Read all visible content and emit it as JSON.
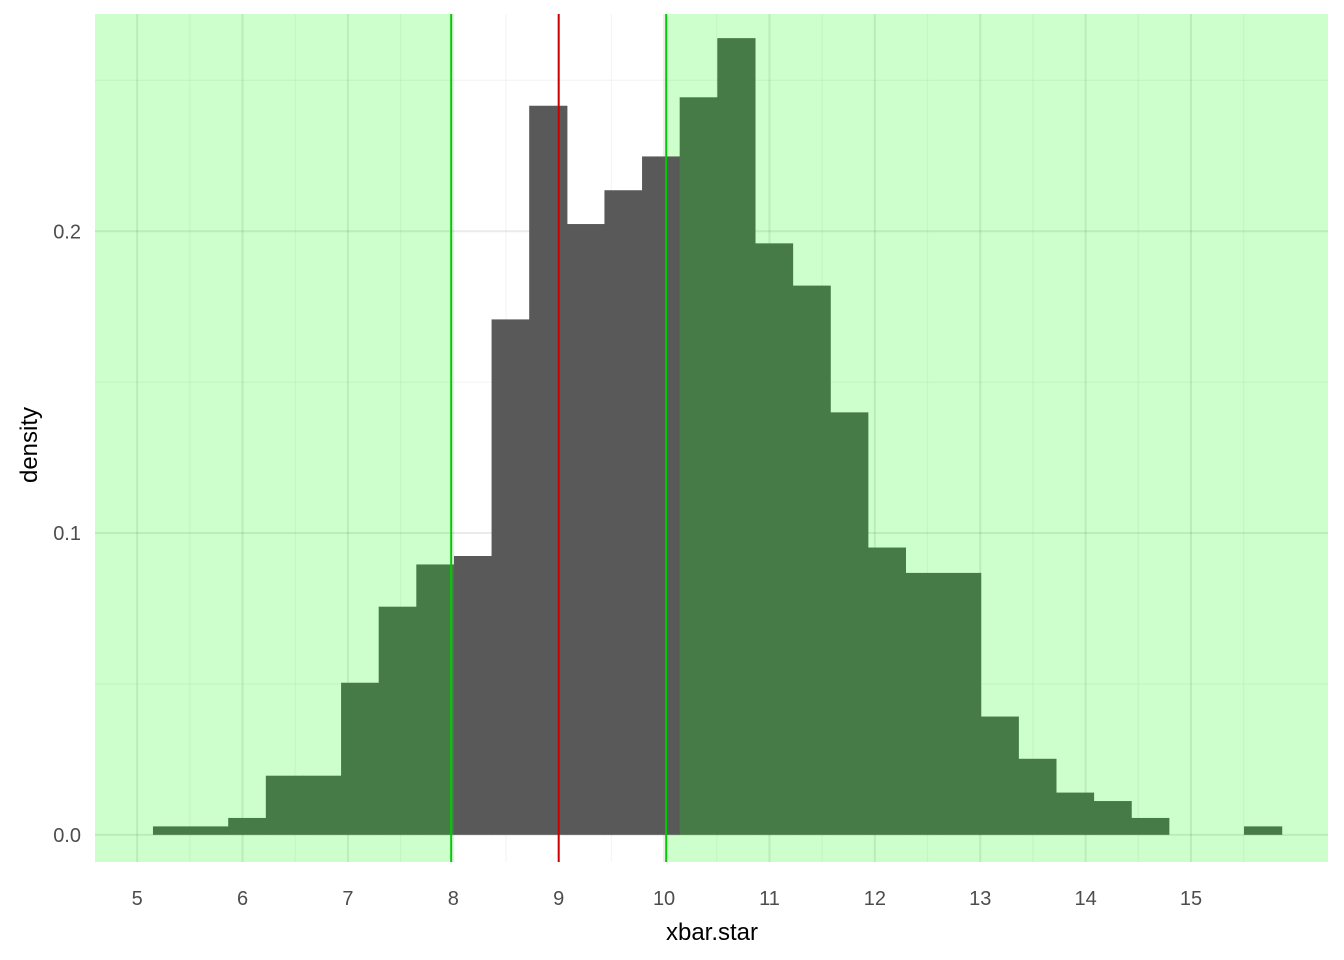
{
  "chart_data": {
    "type": "bar",
    "subtype": "histogram",
    "xlabel": "xbar.star",
    "ylabel": "density",
    "xlim": [
      4.6,
      16.3
    ],
    "ylim": [
      -0.009,
      0.272
    ],
    "x_ticks": [
      5,
      6,
      7,
      8,
      9,
      10,
      11,
      12,
      13,
      14,
      15
    ],
    "y_ticks": [
      0.0,
      0.1,
      0.2
    ],
    "y_tick_labels": [
      "0.0",
      "0.1",
      "0.2"
    ],
    "y_minor_ticks": [
      0.05,
      0.15,
      0.25
    ],
    "x_minor_ticks": [
      5.5,
      6.5,
      7.5,
      8.5,
      9.5,
      10.5,
      11.5,
      12.5,
      13.5,
      14.5,
      15.5
    ],
    "grid": true,
    "bin_width": 0.357,
    "bin_start": 5.15,
    "densities": [
      0.0028,
      0.0028,
      0.0056,
      0.0196,
      0.0196,
      0.0504,
      0.0756,
      0.0896,
      0.0924,
      0.1708,
      0.2416,
      0.2024,
      0.2136,
      0.2248,
      0.2444,
      0.264,
      0.196,
      0.182,
      0.14,
      0.0952,
      0.0868,
      0.0868,
      0.0392,
      0.0252,
      0.014,
      0.0112,
      0.0056,
      0.0,
      0.0,
      0.0028
    ],
    "highlight_region": {
      "from": 7.98,
      "to": 10.02
    },
    "vlines": [
      {
        "x": 7.98,
        "role": "lower-bound"
      },
      {
        "x": 9.0,
        "role": "center"
      },
      {
        "x": 10.02,
        "role": "upper-bound"
      }
    ],
    "colors": {
      "outside_background": "#ccffcc",
      "bar_outside": "#467a46",
      "bar_inside": "#595959",
      "bound_line": "#00cc00",
      "center_line": "#cc0000",
      "grid_major": "#ebebeb",
      "grid_minor": "#f5f5f5"
    }
  }
}
